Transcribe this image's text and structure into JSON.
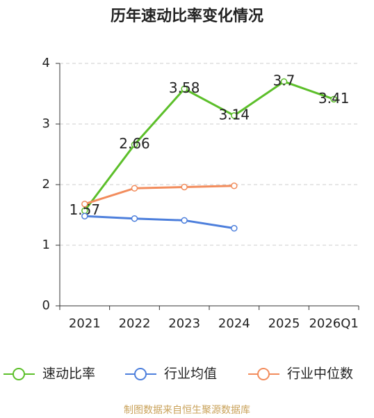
{
  "chart_data": {
    "type": "line",
    "title": "历年速动比率变化情况",
    "categories": [
      "2021",
      "2022",
      "2023",
      "2024",
      "2025",
      "2026Q1"
    ],
    "series": [
      {
        "name": "速动比率",
        "color": "#5cbf2a",
        "values": [
          1.57,
          2.66,
          3.58,
          3.14,
          3.7,
          3.41
        ],
        "labels": true
      },
      {
        "name": "行业均值",
        "color": "#4d7fdc",
        "values": [
          1.48,
          1.44,
          1.41,
          1.28,
          null,
          null
        ],
        "labels": false
      },
      {
        "name": "行业中位数",
        "color": "#f28c5c",
        "values": [
          1.68,
          1.94,
          1.96,
          1.98,
          null,
          null
        ],
        "labels": false
      }
    ],
    "ylim": [
      0,
      4
    ],
    "yticks": [
      0,
      1,
      2,
      3,
      4
    ],
    "grid": true,
    "source": "制图数据来自恒生聚源数据库"
  }
}
